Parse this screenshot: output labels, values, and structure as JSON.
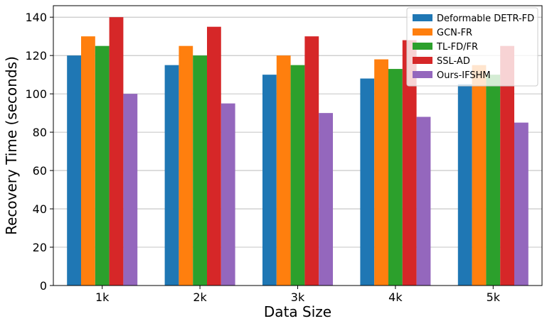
{
  "chart_data": {
    "type": "bar",
    "xlabel": "Data Size",
    "ylabel": "Recovery Time (seconds)",
    "categories": [
      "1k",
      "2k",
      "3k",
      "4k",
      "5k"
    ],
    "ylim": [
      0,
      146
    ],
    "yticks": [
      0,
      20,
      40,
      60,
      80,
      100,
      120,
      140
    ],
    "grid": true,
    "legend_position": "top-right",
    "series": [
      {
        "name": "Deformable DETR-FD",
        "color": "#1f77b4",
        "values": [
          120,
          115,
          110,
          108,
          105
        ]
      },
      {
        "name": "GCN-FR",
        "color": "#ff7f0e",
        "values": [
          130,
          125,
          120,
          118,
          115
        ]
      },
      {
        "name": "TL-FD/FR",
        "color": "#2ca02c",
        "values": [
          125,
          120,
          115,
          113,
          110
        ]
      },
      {
        "name": "SSL-AD",
        "color": "#d62728",
        "values": [
          140,
          135,
          130,
          128,
          125
        ]
      },
      {
        "name": "Ours-IFSHM",
        "color": "#9467bd",
        "values": [
          100,
          95,
          90,
          88,
          85
        ]
      }
    ]
  }
}
